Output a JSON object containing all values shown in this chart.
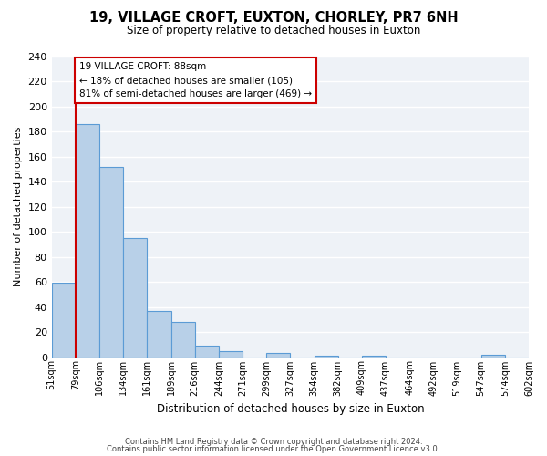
{
  "title": "19, VILLAGE CROFT, EUXTON, CHORLEY, PR7 6NH",
  "subtitle": "Size of property relative to detached houses in Euxton",
  "xlabel": "Distribution of detached houses by size in Euxton",
  "ylabel": "Number of detached properties",
  "bar_values": [
    59,
    186,
    152,
    95,
    37,
    28,
    9,
    5,
    0,
    3,
    0,
    1,
    0,
    1,
    0,
    0,
    0,
    0,
    2,
    0
  ],
  "bin_labels": [
    "51sqm",
    "79sqm",
    "106sqm",
    "134sqm",
    "161sqm",
    "189sqm",
    "216sqm",
    "244sqm",
    "271sqm",
    "299sqm",
    "327sqm",
    "354sqm",
    "382sqm",
    "409sqm",
    "437sqm",
    "464sqm",
    "492sqm",
    "519sqm",
    "547sqm",
    "574sqm",
    "602sqm"
  ],
  "bar_color": "#b8d0e8",
  "bar_edge_color": "#5b9bd5",
  "ylim": [
    0,
    240
  ],
  "yticks": [
    0,
    20,
    40,
    60,
    80,
    100,
    120,
    140,
    160,
    180,
    200,
    220,
    240
  ],
  "property_line_color": "#cc0000",
  "annotation_title": "19 VILLAGE CROFT: 88sqm",
  "annotation_line1": "← 18% of detached houses are smaller (105)",
  "annotation_line2": "81% of semi-detached houses are larger (469) →",
  "annotation_box_color": "#ffffff",
  "annotation_box_edge": "#cc0000",
  "footer1": "Contains HM Land Registry data © Crown copyright and database right 2024.",
  "footer2": "Contains public sector information licensed under the Open Government Licence v3.0.",
  "background_color": "#eef2f7",
  "grid_color": "#ffffff",
  "fig_bg_color": "#ffffff"
}
